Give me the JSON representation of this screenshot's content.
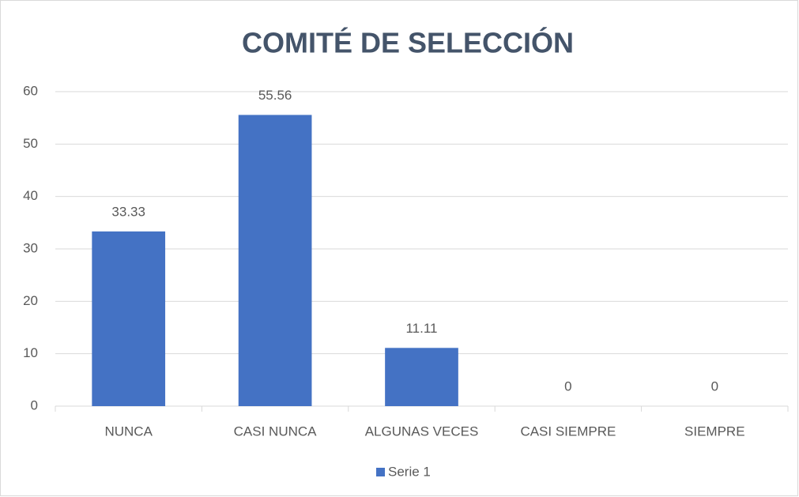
{
  "chart_data": {
    "type": "bar",
    "title": "COMITÉ DE SELECCIÓN",
    "categories": [
      "NUNCA",
      "CASI NUNCA",
      "ALGUNAS VECES",
      "CASI SIEMPRE",
      "SIEMPRE"
    ],
    "series": [
      {
        "name": "Serie 1",
        "color": "#4472c4",
        "values": [
          33.33,
          55.56,
          11.11,
          0,
          0
        ]
      }
    ],
    "ylim": [
      0,
      60
    ],
    "yticks": [
      0,
      10,
      20,
      30,
      40,
      50,
      60
    ],
    "grid": true,
    "legend": "bottom"
  }
}
